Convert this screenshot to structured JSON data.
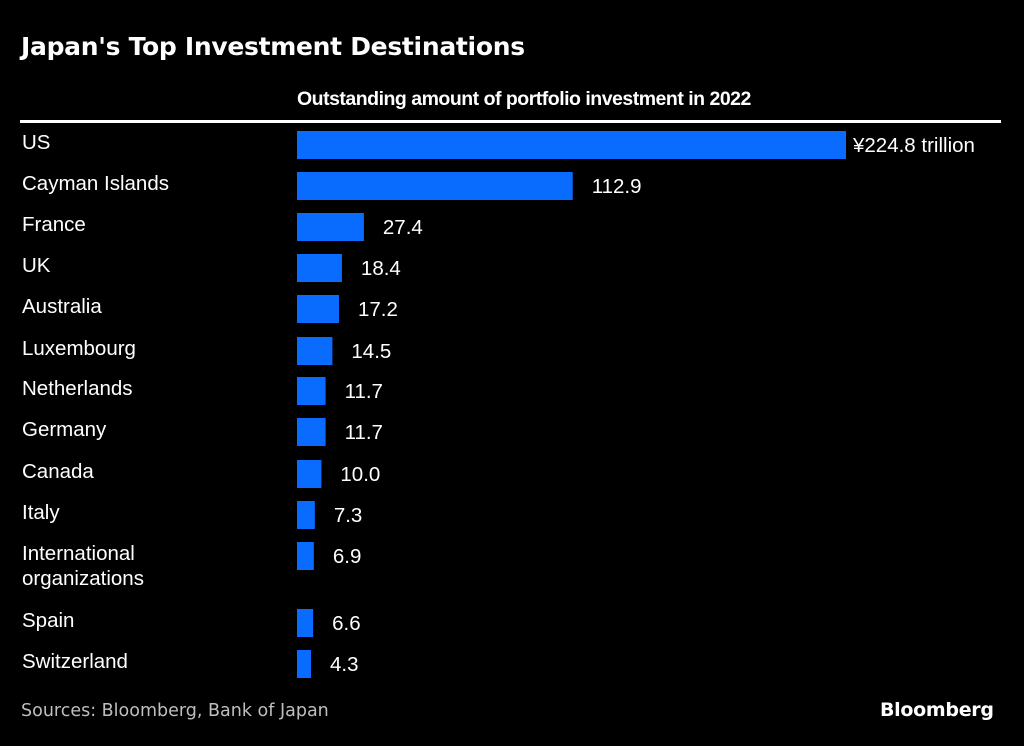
{
  "chart_data": {
    "type": "bar",
    "orientation": "horizontal",
    "title": "Japan's Top Investment Destinations",
    "subtitle": "Outstanding amount of portfolio investment in 2022",
    "unit_label": "¥224.8 trillion",
    "xlabel": "",
    "ylabel": "",
    "bar_color": "#0a6cff",
    "grid": false,
    "categories": [
      "US",
      "Cayman Islands",
      "France",
      "UK",
      "Australia",
      "Luxembourg",
      "Netherlands",
      "Germany",
      "Canada",
      "Italy",
      "International organizations",
      "Spain",
      "Switzerland"
    ],
    "category_lines": [
      [
        "US"
      ],
      [
        "Cayman Islands"
      ],
      [
        "France"
      ],
      [
        "UK"
      ],
      [
        "Australia"
      ],
      [
        "Luxembourg"
      ],
      [
        "Netherlands"
      ],
      [
        "Germany"
      ],
      [
        "Canada"
      ],
      [
        "Italy"
      ],
      [
        "International",
        "organizations"
      ],
      [
        "Spain"
      ],
      [
        "Switzerland"
      ]
    ],
    "values": [
      224.8,
      112.9,
      27.4,
      18.4,
      17.2,
      14.5,
      11.7,
      11.7,
      10.0,
      7.3,
      6.9,
      6.6,
      4.3
    ],
    "value_labels": [
      "¥224.8 trillion",
      "112.9",
      "27.4",
      "18.4",
      "17.2",
      "14.5",
      "11.7",
      "11.7",
      "10.0",
      "7.3",
      "6.9",
      "6.6",
      "4.3"
    ],
    "xlim": [
      0,
      224.8
    ]
  },
  "footer": {
    "source": "Sources: Bloomberg, Bank of Japan",
    "brand": "Bloomberg"
  }
}
